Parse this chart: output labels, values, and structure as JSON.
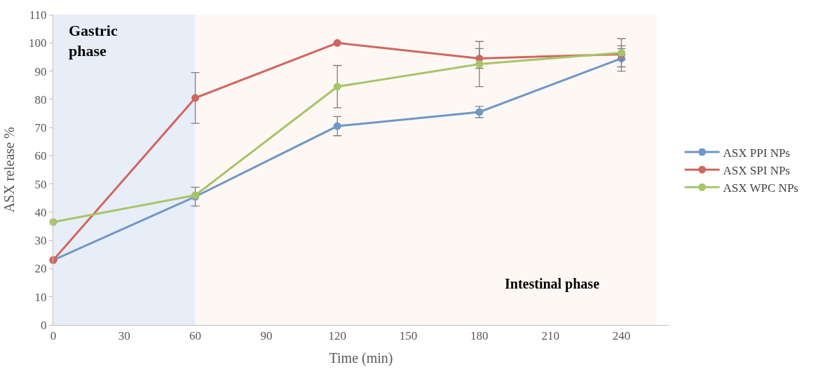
{
  "chart_data": {
    "type": "line",
    "xlabel": "Time (min)",
    "ylabel": "ASX release %",
    "x": [
      0,
      60,
      120,
      180,
      240
    ],
    "series": [
      {
        "name": "ASX PPI NPs",
        "color": "#6f97c8",
        "values": [
          23,
          45.5,
          70.5,
          75.5,
          94.5
        ],
        "errors": [
          null,
          3.3,
          3.4,
          2,
          4.5
        ]
      },
      {
        "name": "ASX SPI NPs",
        "color": "#d0675f",
        "values": [
          23,
          80.5,
          100,
          94.5,
          96
        ],
        "errors": [
          null,
          9,
          null,
          3.5,
          2
        ]
      },
      {
        "name": "ASX WPC NPs",
        "color": "#a8c46a",
        "values": [
          36.5,
          46,
          84.5,
          92.5,
          96.5
        ],
        "errors": [
          null,
          null,
          7.5,
          8,
          5
        ]
      }
    ],
    "bands": [
      {
        "axis": "x",
        "from": 0,
        "to": 60,
        "label": "Gastric\nphase",
        "color": "#e8eef8"
      },
      {
        "axis": "x",
        "from": 60,
        "to": 255,
        "label": "Intestinal phase",
        "color": "#fdf8f4"
      }
    ],
    "xlim": [
      0,
      260
    ],
    "xticks": [
      0,
      30,
      60,
      90,
      120,
      150,
      180,
      210,
      240
    ],
    "ylim": [
      0,
      110
    ],
    "yticks": [
      0,
      10,
      20,
      30,
      40,
      50,
      60,
      70,
      80,
      90,
      100,
      110
    ],
    "grid": false,
    "legend": "right",
    "marker": "circle",
    "line_style": "solid"
  }
}
